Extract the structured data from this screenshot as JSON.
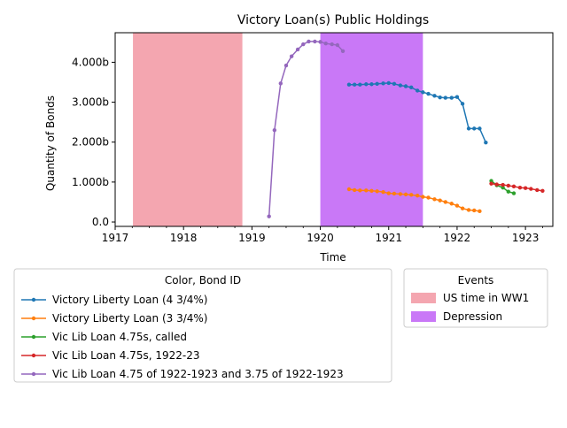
{
  "chart_data": {
    "type": "line",
    "title": "Victory Loan(s) Public Holdings",
    "xlabel": "Time",
    "ylabel": "Quantity of Bonds",
    "xlim": [
      1917.0,
      1923.4
    ],
    "ylim": [
      -0.11,
      4.74
    ],
    "x_ticks": [
      1917,
      1918,
      1919,
      1920,
      1921,
      1922,
      1923
    ],
    "x_tick_labels": [
      "1917",
      "1918",
      "1919",
      "1920",
      "1921",
      "1922",
      "1923"
    ],
    "y_ticks": [
      0,
      1,
      2,
      3,
      4
    ],
    "y_tick_labels": [
      "0.0",
      "1.000b",
      "2.000b",
      "3.000b",
      "4.000b"
    ],
    "grid": false,
    "series_legend": {
      "title": "Color, Bond ID",
      "placement": "bottom-left, outside plot"
    },
    "events_legend": {
      "title": "Events",
      "placement": "bottom-right, outside plot"
    },
    "events": [
      {
        "name": "US time in WW1",
        "start": 1917.26,
        "end": 1918.86,
        "color": "#f4a6b0"
      },
      {
        "name": "Depression",
        "start": 1920.0,
        "end": 1921.5,
        "color": "#c978f7"
      }
    ],
    "series": [
      {
        "name": "Victory Liberty Loan (4 3/4%)",
        "color": "#1f77b4",
        "x": [
          1920.42,
          1920.5,
          1920.58,
          1920.67,
          1920.75,
          1920.83,
          1920.92,
          1921.0,
          1921.08,
          1921.17,
          1921.25,
          1921.33,
          1921.42,
          1921.5,
          1921.58,
          1921.67,
          1921.75,
          1921.83,
          1921.92,
          1922.0,
          1922.08,
          1922.17,
          1922.25,
          1922.33,
          1922.42
        ],
        "y": [
          3.44,
          3.44,
          3.44,
          3.45,
          3.45,
          3.46,
          3.47,
          3.48,
          3.46,
          3.42,
          3.4,
          3.37,
          3.29,
          3.25,
          3.21,
          3.16,
          3.12,
          3.11,
          3.11,
          3.13,
          2.96,
          2.34,
          2.34,
          2.34,
          1.99
        ]
      },
      {
        "name": "Victory Liberty Loan (3 3/4%)",
        "color": "#ff7f0e",
        "x": [
          1920.42,
          1920.5,
          1920.58,
          1920.67,
          1920.75,
          1920.83,
          1920.92,
          1921.0,
          1921.08,
          1921.17,
          1921.25,
          1921.33,
          1921.42,
          1921.5,
          1921.58,
          1921.67,
          1921.75,
          1921.83,
          1921.92,
          1922.0,
          1922.08,
          1922.17,
          1922.25,
          1922.33
        ],
        "y": [
          0.82,
          0.8,
          0.79,
          0.79,
          0.78,
          0.77,
          0.75,
          0.72,
          0.71,
          0.7,
          0.69,
          0.68,
          0.66,
          0.63,
          0.61,
          0.57,
          0.54,
          0.5,
          0.46,
          0.41,
          0.34,
          0.3,
          0.29,
          0.27
        ]
      },
      {
        "name": "Vic Lib Loan 4.75s, called",
        "color": "#2ca02c",
        "x": [
          1922.5,
          1922.58,
          1922.67,
          1922.75,
          1922.83
        ],
        "y": [
          1.03,
          0.92,
          0.86,
          0.76,
          0.72
        ]
      },
      {
        "name": "Vic Lib Loan 4.75s, 1922-23",
        "color": "#d62728",
        "x": [
          1922.5,
          1922.58,
          1922.67,
          1922.75,
          1922.83,
          1922.92,
          1923.0,
          1923.08,
          1923.17,
          1923.25
        ],
        "y": [
          0.96,
          0.94,
          0.93,
          0.91,
          0.89,
          0.86,
          0.85,
          0.83,
          0.8,
          0.78
        ]
      },
      {
        "name": "Vic Lib Loan 4.75 of 1922-1923 and 3.75 of 1922-1923",
        "color": "#9467bd",
        "x": [
          1919.25,
          1919.33,
          1919.42,
          1919.5,
          1919.58,
          1919.67,
          1919.75,
          1919.83,
          1919.92,
          1920.0,
          1920.08,
          1920.17,
          1920.25,
          1920.33
        ],
        "y": [
          0.14,
          2.3,
          3.47,
          3.92,
          4.15,
          4.32,
          4.45,
          4.52,
          4.52,
          4.51,
          4.47,
          4.45,
          4.43,
          4.28
        ]
      }
    ]
  }
}
